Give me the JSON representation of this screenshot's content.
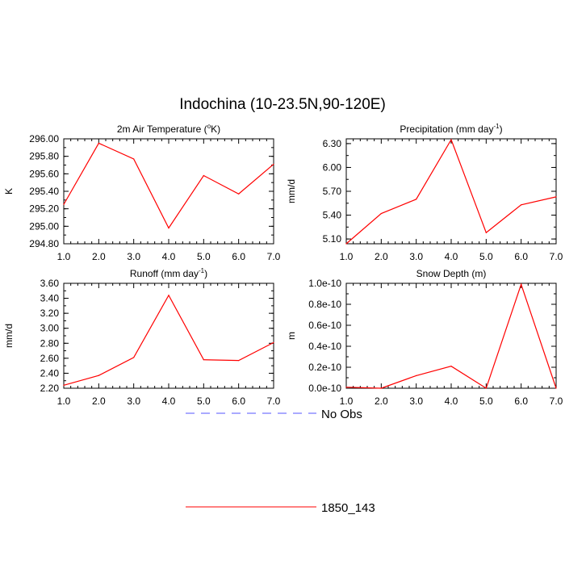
{
  "main_title": "Indochina (10-23.5N,90-120E)",
  "legend": {
    "items": [
      {
        "label": "No Obs",
        "color": "#5555ff",
        "dash": true
      },
      {
        "label": "1850_143",
        "color": "#ff0000",
        "dash": false
      }
    ]
  },
  "chart_data": [
    {
      "type": "line",
      "title": "2m Air Temperature (",
      "title_sup": "o",
      "title_end": "K)",
      "ylabel": "K",
      "x": [
        1,
        2,
        3,
        4,
        5,
        6,
        7
      ],
      "xlim": [
        1,
        7
      ],
      "ylim": [
        294.8,
        296.0
      ],
      "yticks": [
        294.8,
        295.0,
        295.2,
        295.4,
        295.6,
        295.8,
        296.0
      ],
      "ytick_labels": [
        "294.80",
        "295.00",
        "295.20",
        "295.40",
        "295.60",
        "295.80",
        "296.00"
      ],
      "xtick_labels": [
        "1.0",
        "2.0",
        "3.0",
        "4.0",
        "5.0",
        "6.0",
        "7.0"
      ],
      "series": [
        {
          "name": "1850_143",
          "color": "#ff0000",
          "values": [
            295.25,
            295.95,
            295.77,
            294.98,
            295.58,
            295.37,
            295.71
          ]
        }
      ]
    },
    {
      "type": "line",
      "title": "Precipitation (mm day",
      "title_sup": "-1",
      "title_end": ")",
      "ylabel": "mm/d",
      "x": [
        1,
        2,
        3,
        4,
        5,
        6,
        7
      ],
      "xlim": [
        1,
        7
      ],
      "ylim": [
        5.04,
        6.36
      ],
      "yticks": [
        5.1,
        5.4,
        5.7,
        6.0,
        6.3
      ],
      "ytick_labels": [
        "5.10",
        "5.40",
        "5.70",
        "6.00",
        "6.30"
      ],
      "xtick_labels": [
        "1.0",
        "2.0",
        "3.0",
        "4.0",
        "5.0",
        "6.0",
        "7.0"
      ],
      "series": [
        {
          "name": "1850_143",
          "color": "#ff0000",
          "values": [
            5.04,
            5.42,
            5.6,
            6.35,
            5.18,
            5.53,
            5.63
          ]
        }
      ]
    },
    {
      "type": "line",
      "title": "Runoff (mm day",
      "title_sup": "-1",
      "title_end": ")",
      "ylabel": "mm/d",
      "x": [
        1,
        2,
        3,
        4,
        5,
        6,
        7
      ],
      "xlim": [
        1,
        7
      ],
      "ylim": [
        2.2,
        3.6
      ],
      "yticks": [
        2.2,
        2.4,
        2.6,
        2.8,
        3.0,
        3.2,
        3.4,
        3.6
      ],
      "ytick_labels": [
        "2.20",
        "2.40",
        "2.60",
        "2.80",
        "3.00",
        "3.20",
        "3.40",
        "3.60"
      ],
      "xtick_labels": [
        "1.0",
        "2.0",
        "3.0",
        "4.0",
        "5.0",
        "6.0",
        "7.0"
      ],
      "series": [
        {
          "name": "1850_143",
          "color": "#ff0000",
          "values": [
            2.24,
            2.37,
            2.61,
            3.44,
            2.58,
            2.57,
            2.81
          ]
        }
      ]
    },
    {
      "type": "line",
      "title": "Snow Depth (m)",
      "title_sup": "",
      "title_end": "",
      "ylabel": "m",
      "x": [
        1,
        2,
        3,
        4,
        5,
        6,
        7
      ],
      "xlim": [
        1,
        7
      ],
      "ylim": [
        0,
        1e-10
      ],
      "yticks": [
        0,
        2e-11,
        4e-11,
        6e-11,
        8e-11,
        1e-10
      ],
      "ytick_labels": [
        "0.0e-10",
        "0.2e-10",
        "0.4e-10",
        "0.6e-10",
        "0.8e-10",
        "1.0e-10"
      ],
      "xtick_labels": [
        "1.0",
        "2.0",
        "3.0",
        "4.0",
        "5.0",
        "6.0",
        "7.0"
      ],
      "series": [
        {
          "name": "1850_143",
          "color": "#ff0000",
          "values": [
            1e-12,
            0.0,
            1.2e-11,
            2.1e-11,
            0.0,
            9.9e-11,
            0.0
          ]
        }
      ]
    }
  ]
}
